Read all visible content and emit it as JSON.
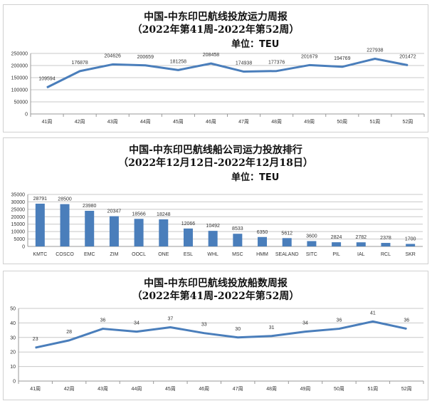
{
  "chart_data": [
    {
      "type": "line",
      "title": "中国-中东印巴航线投放运力周报",
      "subtitle": "（2022年第41周-2022年第52周）",
      "unit": "单位：TEU",
      "categories": [
        "41周",
        "42周",
        "43周",
        "44周",
        "45周",
        "46周",
        "47周",
        "48周",
        "49周",
        "50周",
        "51周",
        "52周"
      ],
      "values": [
        109594,
        176878,
        204626,
        200659,
        181258,
        208458,
        174938,
        177376,
        201679,
        194769,
        227938,
        201472
      ],
      "ylim": [
        0,
        250000
      ],
      "yticks": [
        0,
        50000,
        100000,
        150000,
        200000,
        250000
      ],
      "grid": true,
      "color": "#4a7ebb"
    },
    {
      "type": "bar",
      "title": "中国-中东印巴航线船公司运力投放排行",
      "subtitle": "（2022年12月12日-2022年12月18日）",
      "unit": "单位：TEU",
      "categories": [
        "KMTC",
        "COSCO",
        "EMC",
        "ZIM",
        "OOCL",
        "ONE",
        "ESL",
        "WHL",
        "MSC",
        "HMM",
        "SEALAND",
        "SITC",
        "PIL",
        "IAL",
        "RCL",
        "SKR"
      ],
      "values": [
        28791,
        28500,
        23980,
        20347,
        18566,
        18248,
        12066,
        10492,
        8533,
        6350,
        5612,
        3600,
        2824,
        2782,
        2378,
        1700
      ],
      "ylim": [
        0,
        35000
      ],
      "yticks": [
        0,
        5000,
        10000,
        15000,
        20000,
        25000,
        30000,
        35000
      ],
      "grid": true,
      "color": "#4a7ebb"
    },
    {
      "type": "line",
      "title": "中国-中东印巴航线投放船数周报",
      "subtitle": "（2022年第41周-2022年第52周）",
      "categories": [
        "41周",
        "42周",
        "43周",
        "44周",
        "45周",
        "46周",
        "47周",
        "48周",
        "49周",
        "50周",
        "51周",
        "52周"
      ],
      "values": [
        23,
        28,
        36,
        34,
        37,
        33,
        30,
        31,
        34,
        36,
        41,
        36
      ],
      "ylim": [
        0,
        50
      ],
      "yticks": [
        0,
        10,
        20,
        30,
        40,
        50
      ],
      "grid": true,
      "color": "#4a7ebb"
    }
  ]
}
